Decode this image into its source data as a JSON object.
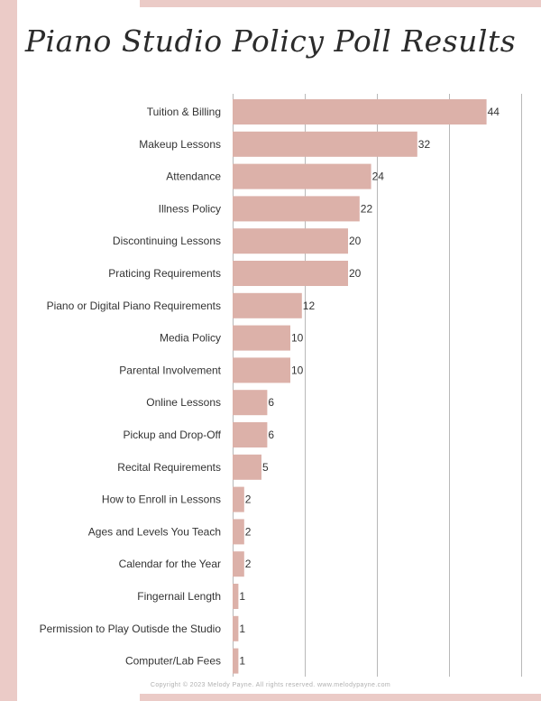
{
  "page": {
    "title": "Piano Studio Policy Poll Results",
    "footer": "Copyright © 2023 Melody Payne. All rights reserved. www.melodypayne.com"
  },
  "colors": {
    "bar": "#dcb1a9",
    "accent": "#ebcbc7",
    "grid": "#b8b8b8"
  },
  "chart_data": {
    "type": "bar",
    "orientation": "horizontal",
    "title": "Piano Studio Policy Poll Results",
    "xlabel": "",
    "ylabel": "",
    "xlim": [
      0,
      50
    ],
    "grid": true,
    "categories": [
      "Tuition & Billing",
      "Makeup Lessons",
      "Attendance",
      "Illness Policy",
      "Discontinuing Lessons",
      "Praticing Requirements",
      "Piano or Digital Piano Requirements",
      "Media Policy",
      "Parental Involvement",
      "Online Lessons",
      "Pickup and Drop-Off",
      "Recital Requirements",
      "How to Enroll in Lessons",
      "Ages and Levels You Teach",
      "Calendar for the Year",
      "Fingernail Length",
      "Permission to Play Outisde the Studio",
      "Computer/Lab Fees"
    ],
    "values": [
      44,
      32,
      24,
      22,
      20,
      20,
      12,
      10,
      10,
      6,
      6,
      5,
      2,
      2,
      2,
      1,
      1,
      1
    ]
  }
}
